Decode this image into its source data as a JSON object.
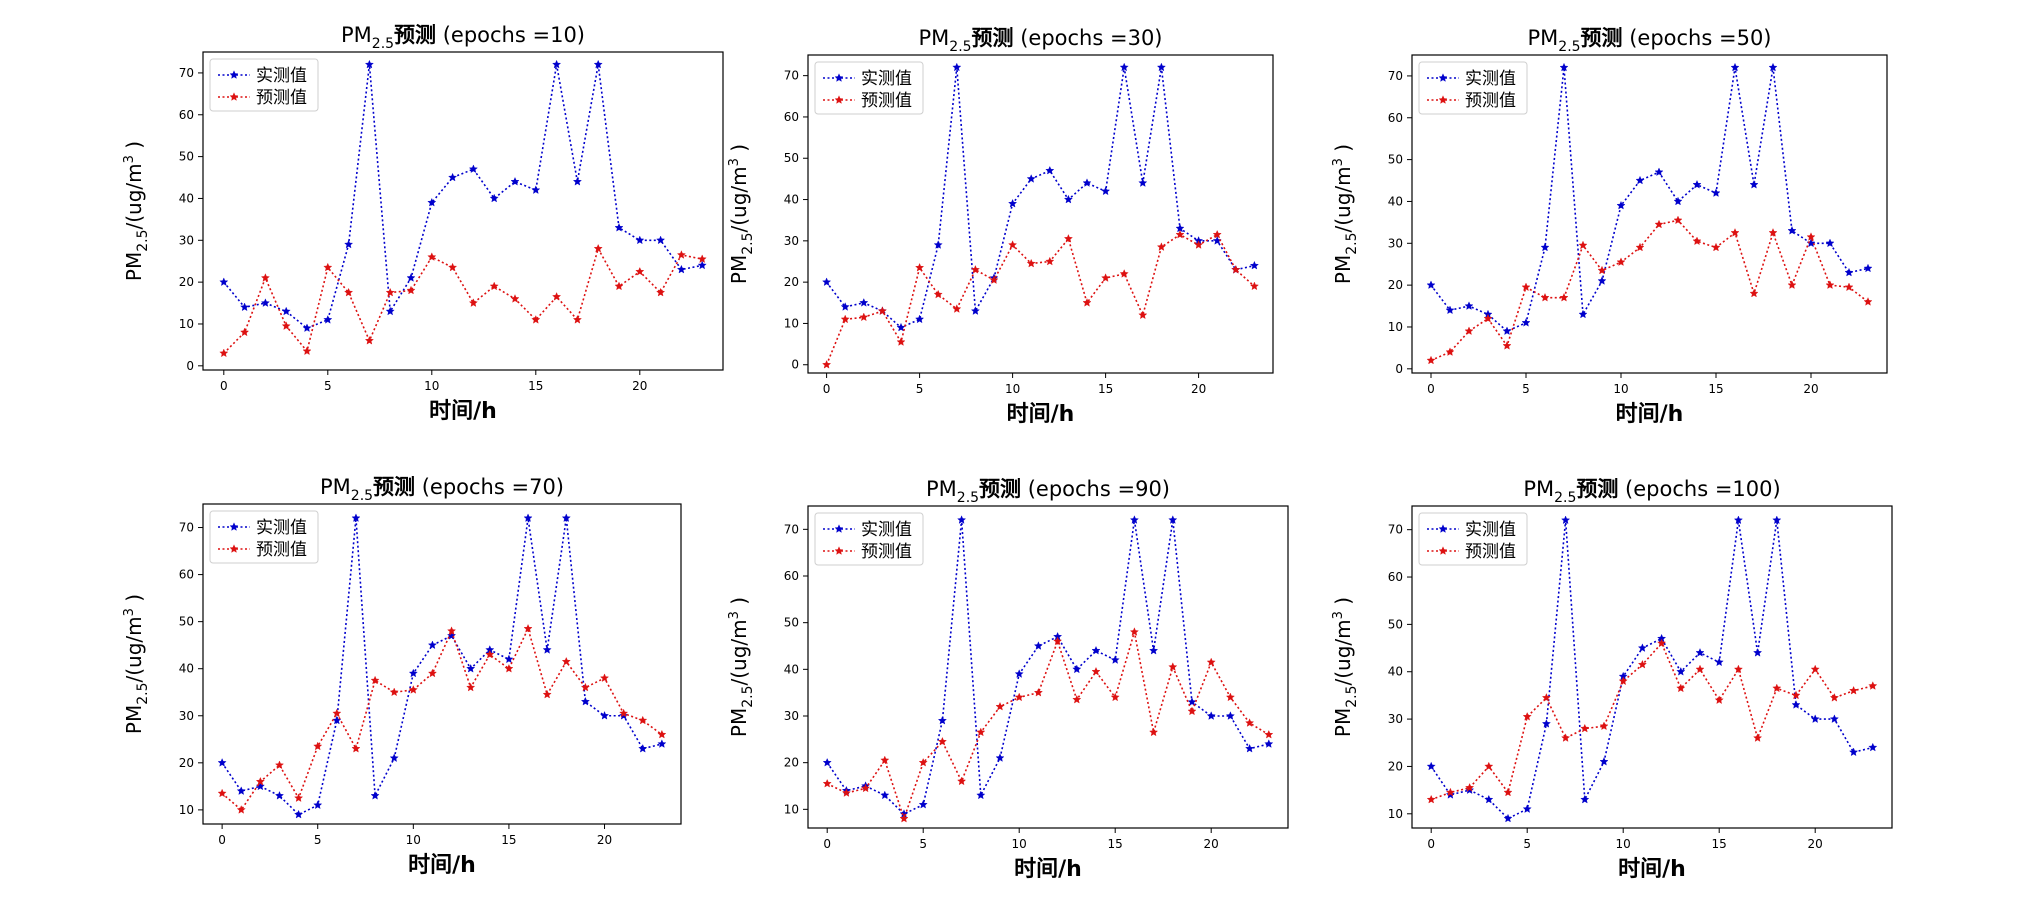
{
  "figure": {
    "title_prefix": "PM",
    "title_sub": "2.5",
    "title_main": "预测",
    "epochs_prefix": "(epochs =",
    "epochs_suffix": ")",
    "ylabel_prefix": "PM",
    "ylabel_sub": "2.5",
    "ylabel_unit": "/(ug/m",
    "ylabel_sup": "3",
    "ylabel_close": ")",
    "xlabel": "时间/h",
    "legend": [
      "实测值",
      "预测值"
    ],
    "colors": {
      "actual": "#0000cc",
      "predicted": "#dd1111"
    }
  },
  "chart_data": [
    {
      "type": "line",
      "epochs": "10",
      "legend_position": "upper-left",
      "grid": false,
      "x": [
        0,
        1,
        2,
        3,
        4,
        5,
        6,
        7,
        8,
        9,
        10,
        11,
        12,
        13,
        14,
        15,
        16,
        17,
        18,
        19,
        20,
        21,
        22,
        23
      ],
      "xlim": [
        -1,
        24
      ],
      "ylim": [
        -1,
        75
      ],
      "xticks": [
        0,
        5,
        10,
        15,
        20
      ],
      "yticks": [
        0,
        10,
        20,
        30,
        40,
        50,
        60,
        70
      ],
      "series": [
        {
          "name": "实测值",
          "values": [
            20,
            14,
            15,
            13,
            9,
            11,
            29,
            72,
            13,
            21,
            39,
            45,
            47,
            40,
            44,
            42,
            72,
            44,
            72,
            33,
            30,
            30,
            23,
            24
          ]
        },
        {
          "name": "预测值",
          "values": [
            3,
            8,
            21,
            9.5,
            3.5,
            23.5,
            17.5,
            6,
            17.5,
            18,
            26,
            23.5,
            15,
            19,
            16,
            11,
            16.5,
            11,
            28,
            19,
            22.5,
            17.5,
            26.5,
            25.5
          ]
        }
      ]
    },
    {
      "type": "line",
      "epochs": "30",
      "legend_position": "upper-left",
      "grid": false,
      "x": [
        0,
        1,
        2,
        3,
        4,
        5,
        6,
        7,
        8,
        9,
        10,
        11,
        12,
        13,
        14,
        15,
        16,
        17,
        18,
        19,
        20,
        21,
        22,
        23
      ],
      "xlim": [
        -1,
        24
      ],
      "ylim": [
        -2,
        75
      ],
      "xticks": [
        0,
        5,
        10,
        15,
        20
      ],
      "yticks": [
        0,
        10,
        20,
        30,
        40,
        50,
        60,
        70
      ],
      "series": [
        {
          "name": "实测值",
          "values": [
            20,
            14,
            15,
            13,
            9,
            11,
            29,
            72,
            13,
            21,
            39,
            45,
            47,
            40,
            44,
            42,
            72,
            44,
            72,
            33,
            30,
            30,
            23,
            24
          ]
        },
        {
          "name": "预测值",
          "values": [
            0,
            11,
            11.5,
            13,
            5.5,
            23.5,
            17,
            13.5,
            23,
            20.5,
            29,
            24.5,
            25,
            30.5,
            15,
            21,
            22,
            12,
            28.5,
            31.5,
            29,
            31.5,
            23,
            19
          ]
        }
      ]
    },
    {
      "type": "line",
      "epochs": "50",
      "legend_position": "upper-left",
      "grid": false,
      "x": [
        0,
        1,
        2,
        3,
        4,
        5,
        6,
        7,
        8,
        9,
        10,
        11,
        12,
        13,
        14,
        15,
        16,
        17,
        18,
        19,
        20,
        21,
        22,
        23
      ],
      "xlim": [
        -1,
        24
      ],
      "ylim": [
        -1,
        75
      ],
      "xticks": [
        0,
        5,
        10,
        15,
        20
      ],
      "yticks": [
        0,
        10,
        20,
        30,
        40,
        50,
        60,
        70
      ],
      "series": [
        {
          "name": "实测值",
          "values": [
            20,
            14,
            15,
            13,
            9,
            11,
            29,
            72,
            13,
            21,
            39,
            45,
            47,
            40,
            44,
            42,
            72,
            44,
            72,
            33,
            30,
            30,
            23,
            24
          ]
        },
        {
          "name": "预测值",
          "values": [
            2,
            4,
            9,
            12,
            5.5,
            19.5,
            17,
            17,
            29.5,
            23.5,
            25.5,
            29,
            34.5,
            35.5,
            30.5,
            29,
            32.5,
            18,
            32.5,
            20,
            31.5,
            20,
            19.5,
            16
          ]
        }
      ]
    },
    {
      "type": "line",
      "epochs": "70",
      "legend_position": "upper-left",
      "grid": false,
      "x": [
        0,
        1,
        2,
        3,
        4,
        5,
        6,
        7,
        8,
        9,
        10,
        11,
        12,
        13,
        14,
        15,
        16,
        17,
        18,
        19,
        20,
        21,
        22,
        23
      ],
      "xlim": [
        -1,
        24
      ],
      "ylim": [
        7,
        75
      ],
      "xticks": [
        0,
        5,
        10,
        15,
        20
      ],
      "yticks": [
        10,
        20,
        30,
        40,
        50,
        60,
        70
      ],
      "series": [
        {
          "name": "实测值",
          "values": [
            20,
            14,
            15,
            13,
            9,
            11,
            29,
            72,
            13,
            21,
            39,
            45,
            47,
            40,
            44,
            42,
            72,
            44,
            72,
            33,
            30,
            30,
            23,
            24
          ]
        },
        {
          "name": "预测值",
          "values": [
            13.5,
            10,
            16,
            19.5,
            12.5,
            23.5,
            30.5,
            23,
            37.5,
            35,
            35.5,
            39,
            48,
            36,
            43,
            40,
            48.5,
            34.5,
            41.5,
            36,
            38,
            30.5,
            29,
            26
          ]
        }
      ]
    },
    {
      "type": "line",
      "epochs": "90",
      "legend_position": "upper-left",
      "grid": false,
      "x": [
        0,
        1,
        2,
        3,
        4,
        5,
        6,
        7,
        8,
        9,
        10,
        11,
        12,
        13,
        14,
        15,
        16,
        17,
        18,
        19,
        20,
        21,
        22,
        23
      ],
      "xlim": [
        -1,
        24
      ],
      "ylim": [
        6,
        75
      ],
      "xticks": [
        0,
        5,
        10,
        15,
        20
      ],
      "yticks": [
        10,
        20,
        30,
        40,
        50,
        60,
        70
      ],
      "series": [
        {
          "name": "实测值",
          "values": [
            20,
            14,
            15,
            13,
            9,
            11,
            29,
            72,
            13,
            21,
            39,
            45,
            47,
            40,
            44,
            42,
            72,
            44,
            72,
            33,
            30,
            30,
            23,
            24
          ]
        },
        {
          "name": "预测值",
          "values": [
            15.5,
            13.5,
            14.5,
            20.5,
            8,
            20,
            24.5,
            16,
            26.5,
            32,
            34,
            35,
            46,
            33.5,
            39.5,
            34,
            48,
            26.5,
            40.5,
            31,
            41.5,
            34,
            28.5,
            26
          ]
        }
      ]
    },
    {
      "type": "line",
      "epochs": "100",
      "legend_position": "upper-left",
      "grid": false,
      "x": [
        0,
        1,
        2,
        3,
        4,
        5,
        6,
        7,
        8,
        9,
        10,
        11,
        12,
        13,
        14,
        15,
        16,
        17,
        18,
        19,
        20,
        21,
        22,
        23
      ],
      "xlim": [
        -1,
        24
      ],
      "ylim": [
        7,
        75
      ],
      "xticks": [
        0,
        5,
        10,
        15,
        20
      ],
      "yticks": [
        10,
        20,
        30,
        40,
        50,
        60,
        70
      ],
      "series": [
        {
          "name": "实测值",
          "values": [
            20,
            14,
            15,
            13,
            9,
            11,
            29,
            72,
            13,
            21,
            39,
            45,
            47,
            40,
            44,
            42,
            72,
            44,
            72,
            33,
            30,
            30,
            23,
            24
          ]
        },
        {
          "name": "预测值",
          "values": [
            13,
            14.5,
            15.5,
            20,
            14.5,
            30.5,
            34.5,
            26,
            28,
            28.5,
            38,
            41.5,
            46,
            36.5,
            40.5,
            34,
            40.5,
            26,
            36.5,
            35,
            40.5,
            34.5,
            36,
            37
          ]
        }
      ]
    }
  ]
}
